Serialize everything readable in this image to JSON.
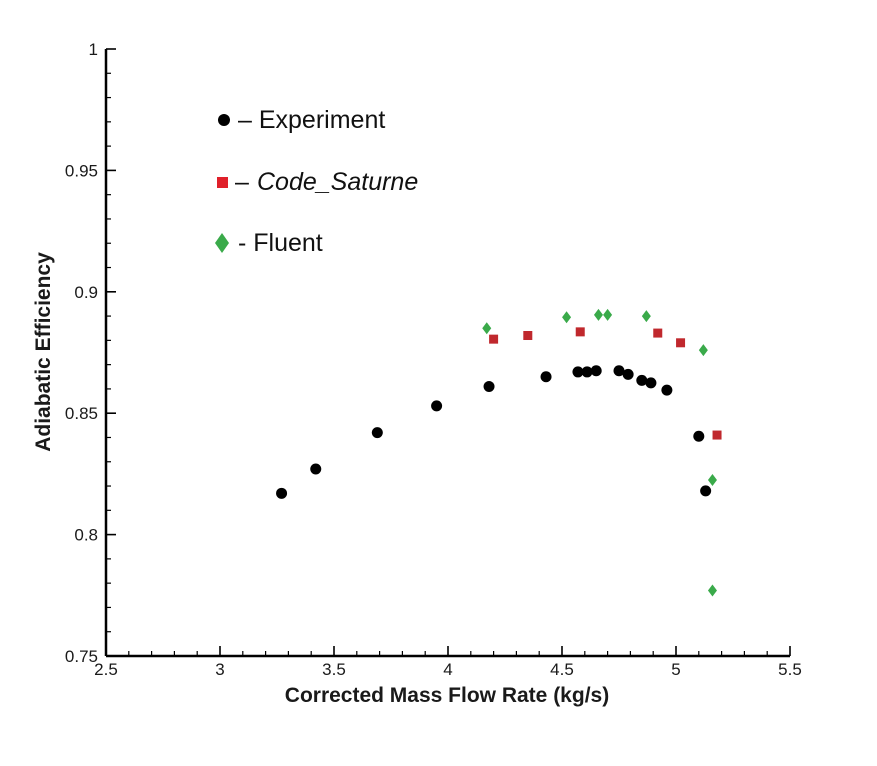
{
  "chart_data": {
    "type": "scatter",
    "xlabel": "Corrected Mass Flow Rate (kg/s)",
    "ylabel": "Adiabatic Efficiency",
    "xlim": [
      2.5,
      5.5
    ],
    "ylim": [
      0.75,
      1.0
    ],
    "x_ticks": [
      2.5,
      3,
      3.5,
      4,
      4.5,
      5,
      5.5
    ],
    "x_tick_labels": [
      "2.5",
      "3",
      "3.5",
      "4",
      "4.5",
      "5",
      "5.5"
    ],
    "y_ticks": [
      0.75,
      0.8,
      0.85,
      0.9,
      0.95,
      1.0
    ],
    "y_tick_labels": [
      "0.75",
      "0.8",
      "0.85",
      "0.9",
      "0.95",
      "1"
    ],
    "grid": false,
    "legend_position": "top-left",
    "series": [
      {
        "name": "Experiment",
        "legend_label": "– Experiment",
        "marker": "circle",
        "color": "#000000",
        "points": [
          [
            3.27,
            0.817
          ],
          [
            3.42,
            0.827
          ],
          [
            3.69,
            0.842
          ],
          [
            3.95,
            0.853
          ],
          [
            4.18,
            0.861
          ],
          [
            4.43,
            0.865
          ],
          [
            4.57,
            0.867
          ],
          [
            4.61,
            0.867
          ],
          [
            4.65,
            0.8675
          ],
          [
            4.75,
            0.8675
          ],
          [
            4.79,
            0.866
          ],
          [
            4.85,
            0.8635
          ],
          [
            4.89,
            0.8625
          ],
          [
            4.96,
            0.8595
          ],
          [
            5.1,
            0.8405
          ],
          [
            5.13,
            0.818
          ]
        ]
      },
      {
        "name": "Code_Saturne",
        "legend_label": "Code_Saturne",
        "legend_prefix": "–",
        "marker": "square",
        "color": "#c0282d",
        "points": [
          [
            4.2,
            0.8805
          ],
          [
            4.35,
            0.882
          ],
          [
            4.58,
            0.8835
          ],
          [
            4.92,
            0.883
          ],
          [
            5.02,
            0.879
          ],
          [
            5.18,
            0.841
          ]
        ]
      },
      {
        "name": "Fluent",
        "legend_label": "- Fluent",
        "marker": "diamond",
        "color": "#3aaa4a",
        "points": [
          [
            4.17,
            0.885
          ],
          [
            4.52,
            0.8895
          ],
          [
            4.66,
            0.8905
          ],
          [
            4.7,
            0.8905
          ],
          [
            4.87,
            0.89
          ],
          [
            5.12,
            0.876
          ],
          [
            5.16,
            0.8225
          ],
          [
            5.16,
            0.777
          ]
        ]
      }
    ]
  }
}
